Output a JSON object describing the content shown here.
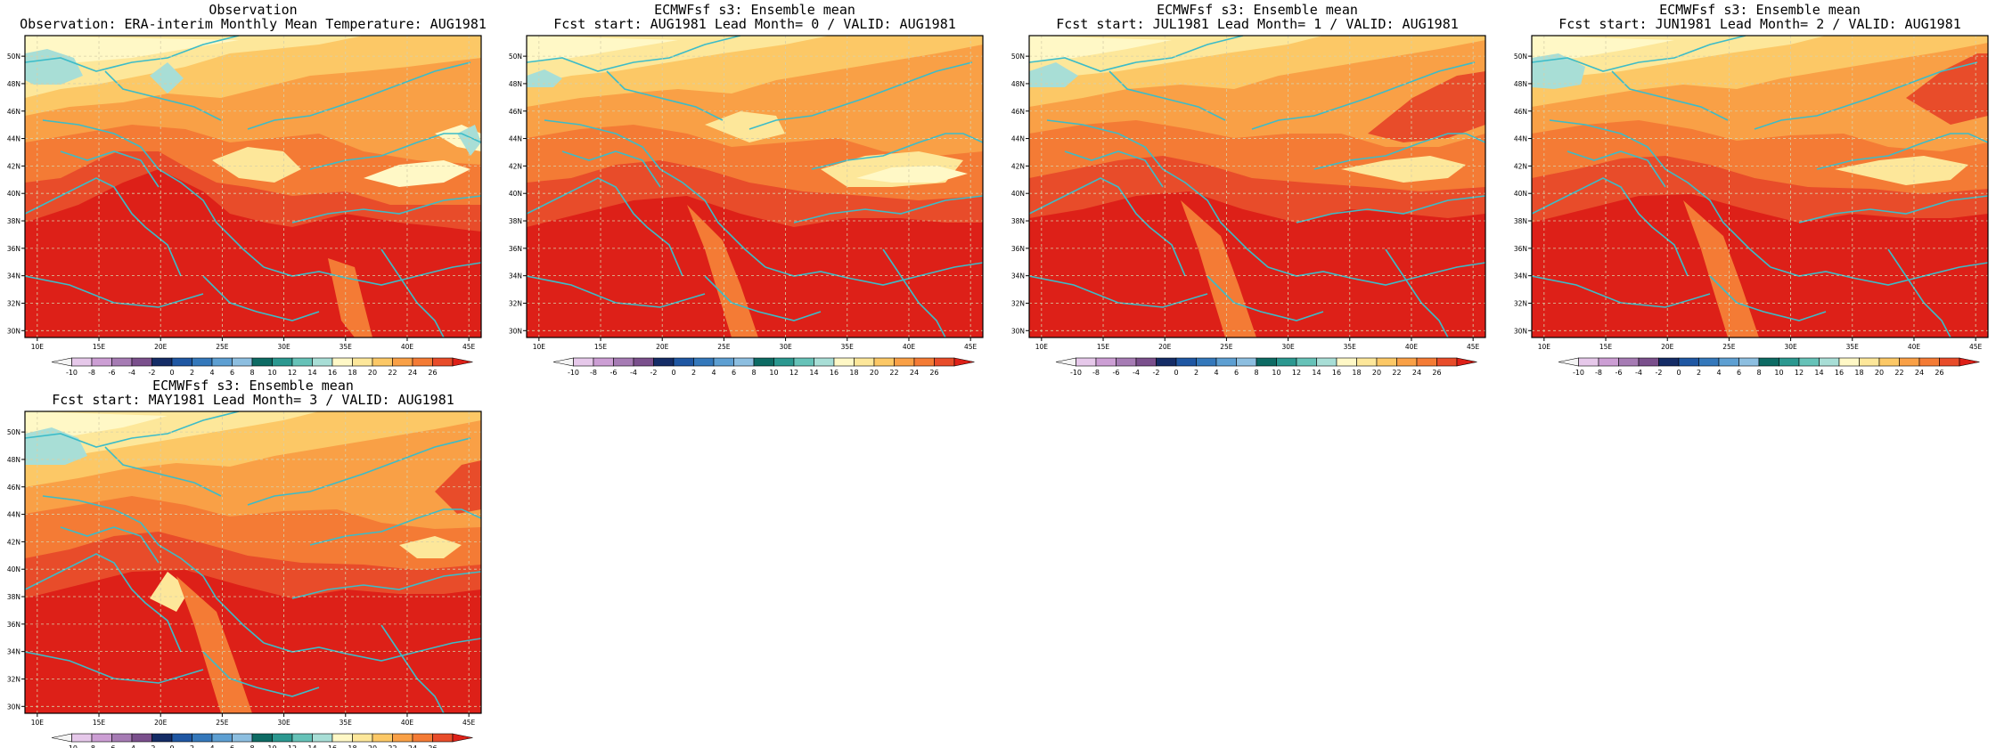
{
  "legend": {
    "labels": [
      "-10",
      "-8",
      "-6",
      "-4",
      "-2",
      "0",
      "2",
      "4",
      "6",
      "8",
      "10",
      "12",
      "14",
      "16",
      "18",
      "20",
      "22",
      "24",
      "26"
    ],
    "colors": [
      "#f4f4f4",
      "#e6c8ea",
      "#cc9ed4",
      "#a67bb4",
      "#7a4f8c",
      "#142c66",
      "#1f57a3",
      "#3478bb",
      "#5d9fd2",
      "#8cbee0",
      "#0d6b64",
      "#2b9890",
      "#66c2b8",
      "#a8ded6",
      "#fff8c6",
      "#fde79a",
      "#fcc866",
      "#f9a046",
      "#f47b35",
      "#e84c2a",
      "#dd2018"
    ]
  },
  "axes": {
    "lon_ticks": [
      "10E",
      "15E",
      "20E",
      "25E",
      "30E",
      "35E",
      "40E",
      "45E"
    ],
    "lat_ticks": [
      "30N",
      "32N",
      "34N",
      "36N",
      "38N",
      "40N",
      "42N",
      "44N",
      "46N",
      "48N",
      "50N"
    ],
    "lon_range": [
      9,
      46
    ],
    "lat_range": [
      29.5,
      51.5
    ]
  },
  "panels": [
    {
      "title1": "Observation",
      "title2": "Observation: ERA-interim Monthly Mean Temperature: AUG1981"
    },
    {
      "title1": "ECMWFsf s3: Ensemble mean",
      "title2": "Fcst start: AUG1981  Lead Month= 0 / VALID: AUG1981"
    },
    {
      "title1": "ECMWFsf s3: Ensemble mean",
      "title2": "Fcst start: JUL1981  Lead Month= 1 / VALID: AUG1981"
    },
    {
      "title1": "ECMWFsf s3: Ensemble mean",
      "title2": "Fcst start: JUN1981  Lead Month= 2 / VALID: AUG1981"
    },
    {
      "title1": "ECMWFsf s3: Ensemble mean",
      "title2": "Fcst start: MAY1981  Lead Month= 3 / VALID: AUG1981"
    }
  ]
}
